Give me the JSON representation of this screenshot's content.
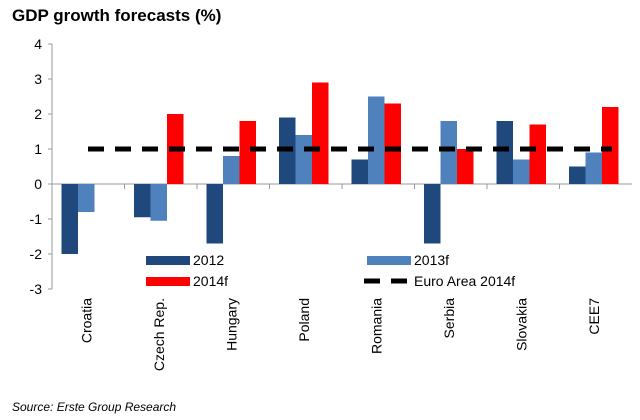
{
  "chart_data": {
    "type": "bar",
    "title": "GDP growth forecasts (%)",
    "source": "Source: Erste Group Research",
    "xlabel": "",
    "ylabel": "",
    "ylim": [
      -3,
      4
    ],
    "yticks": [
      4,
      3,
      2,
      1,
      0,
      -1,
      -2,
      -3
    ],
    "grid": false,
    "legend_position": "bottom-inside",
    "categories": [
      "Croatia",
      "Czech Rep.",
      "Hungary",
      "Poland",
      "Romania",
      "Serbia",
      "Slovakia",
      "CEE7"
    ],
    "series": [
      {
        "name": "2012",
        "color": "#1f497d",
        "values": [
          -2.0,
          -0.95,
          -1.7,
          1.9,
          0.7,
          -1.7,
          1.8,
          0.5
        ]
      },
      {
        "name": "2013f",
        "color": "#4f81bd",
        "values": [
          -0.8,
          -1.05,
          0.8,
          1.4,
          2.5,
          1.8,
          0.7,
          0.9
        ]
      },
      {
        "name": "2014f",
        "color": "#ff0000",
        "values": [
          0.0,
          2.0,
          1.8,
          2.9,
          2.3,
          1.0,
          1.7,
          2.2
        ]
      }
    ],
    "reference_line": {
      "name": "Euro Area 2014f",
      "value": 1.0,
      "color": "#000000",
      "style": "dashed"
    },
    "legend": [
      "2012",
      "2013f",
      "2014f",
      "Euro Area 2014f"
    ]
  }
}
